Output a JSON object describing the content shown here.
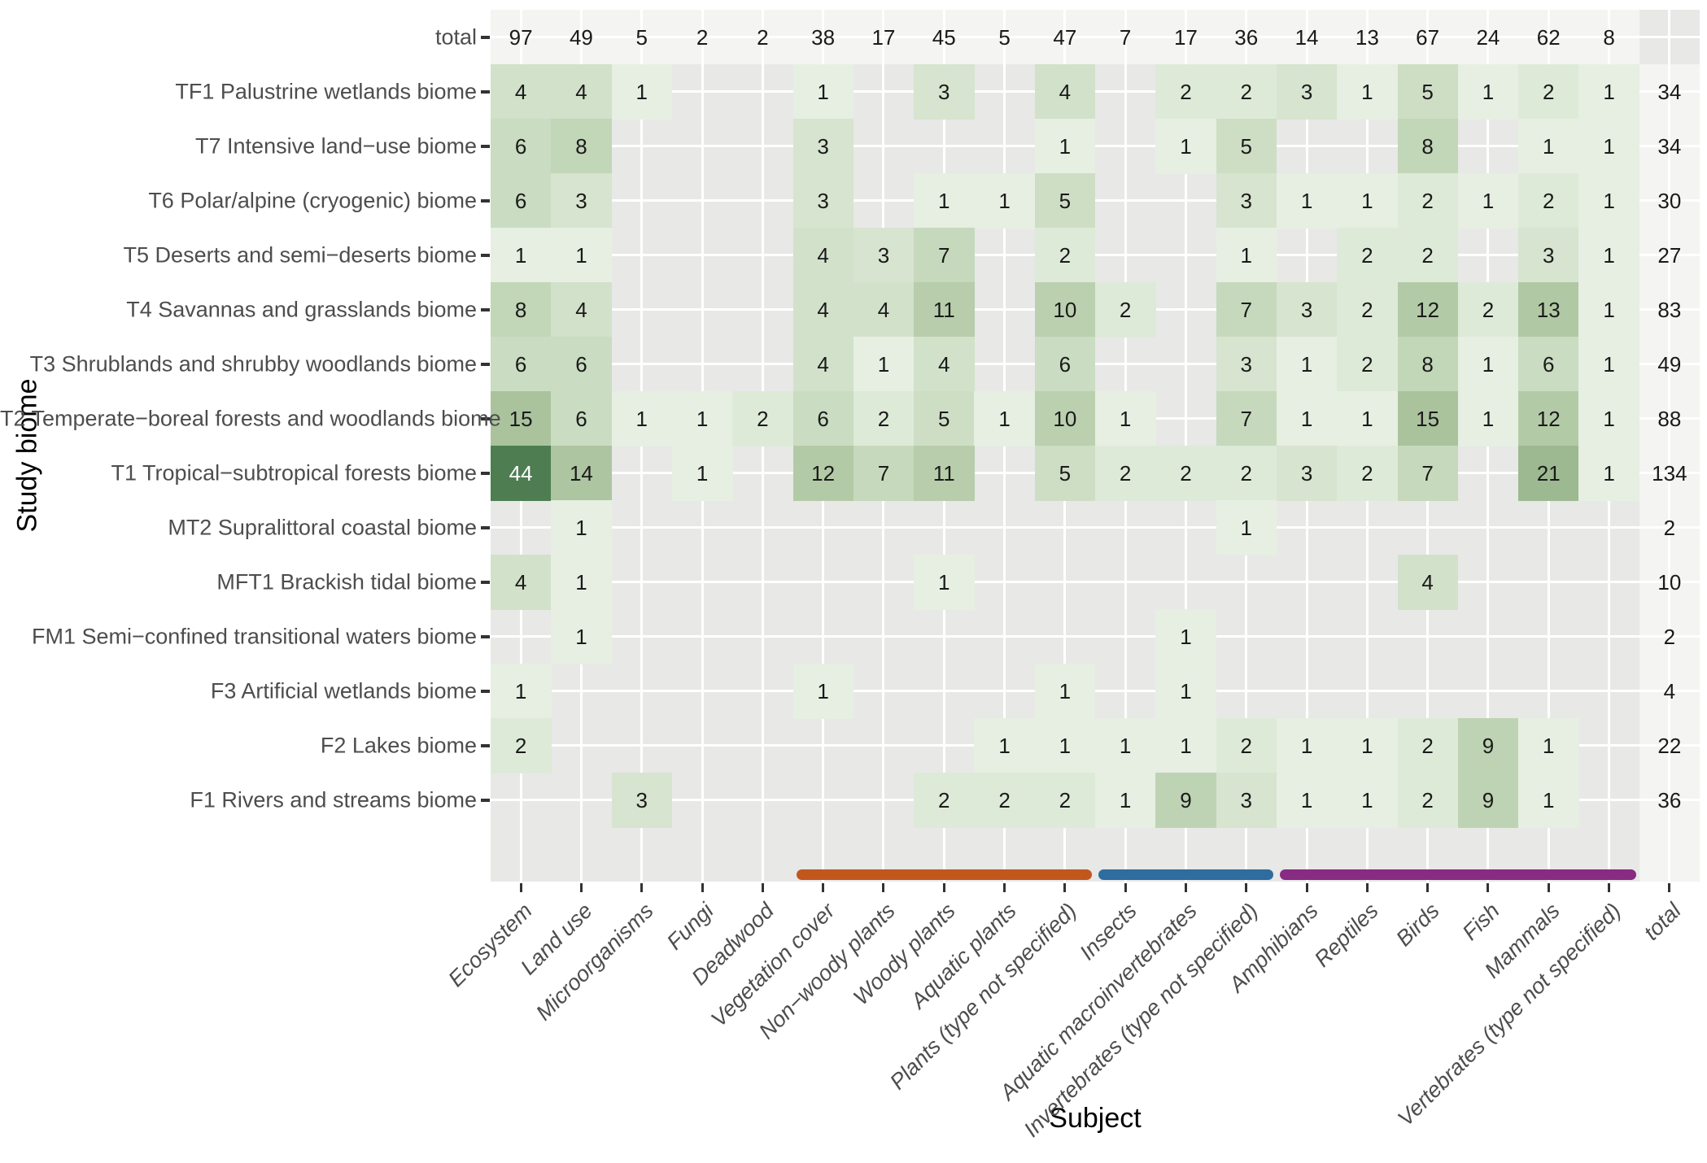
{
  "chart_data": {
    "type": "heatmap",
    "xlabel": "Subject",
    "ylabel": "Study biome",
    "total_label": "total",
    "subjects": [
      "Ecosystem",
      "Land use",
      "Microorganisms",
      "Fungi",
      "Deadwood",
      "Vegetation cover",
      "Non−woody plants",
      "Woody plants",
      "Aquatic plants",
      "Plants (type not specified)",
      "Insects",
      "Aquatic macroinvertebrates",
      "Invertebrates (type not specified)",
      "Amphibians",
      "Reptiles",
      "Birds",
      "Fish",
      "Mammals",
      "Vertebrates (type not specified)"
    ],
    "subject_totals": [
      97,
      49,
      5,
      2,
      2,
      38,
      17,
      45,
      5,
      47,
      7,
      17,
      36,
      14,
      13,
      67,
      24,
      62,
      8
    ],
    "biomes": [
      {
        "label": "TF1 Palustrine wetlands biome",
        "values": [
          4,
          4,
          1,
          0,
          0,
          1,
          0,
          3,
          0,
          4,
          0,
          2,
          2,
          3,
          1,
          5,
          1,
          2,
          1
        ],
        "total": 34
      },
      {
        "label": "T7 Intensive land−use biome",
        "values": [
          6,
          8,
          0,
          0,
          0,
          3,
          0,
          0,
          0,
          1,
          0,
          1,
          5,
          0,
          0,
          8,
          0,
          1,
          1
        ],
        "total": 34
      },
      {
        "label": "T6 Polar/alpine (cryogenic) biome",
        "values": [
          6,
          3,
          0,
          0,
          0,
          3,
          0,
          1,
          1,
          5,
          0,
          0,
          3,
          1,
          1,
          2,
          1,
          2,
          1
        ],
        "total": 30
      },
      {
        "label": "T5 Deserts and semi−deserts biome",
        "values": [
          1,
          1,
          0,
          0,
          0,
          4,
          3,
          7,
          0,
          2,
          0,
          0,
          1,
          0,
          2,
          2,
          0,
          3,
          1
        ],
        "total": 27
      },
      {
        "label": "T4 Savannas and grasslands biome",
        "values": [
          8,
          4,
          0,
          0,
          0,
          4,
          4,
          11,
          0,
          10,
          2,
          0,
          7,
          3,
          2,
          12,
          2,
          13,
          1
        ],
        "total": 83
      },
      {
        "label": "T3 Shrublands and shrubby woodlands biome",
        "values": [
          6,
          6,
          0,
          0,
          0,
          4,
          1,
          4,
          0,
          6,
          0,
          0,
          3,
          1,
          2,
          8,
          1,
          6,
          1
        ],
        "total": 49
      },
      {
        "label": "T2 Temperate−boreal forests and woodlands biome",
        "values": [
          15,
          6,
          1,
          1,
          2,
          6,
          2,
          5,
          1,
          10,
          1,
          0,
          7,
          1,
          1,
          15,
          1,
          12,
          1
        ],
        "total": 88
      },
      {
        "label": "T1 Tropical−subtropical forests biome",
        "values": [
          44,
          14,
          0,
          1,
          0,
          12,
          7,
          11,
          0,
          5,
          2,
          2,
          2,
          3,
          2,
          7,
          0,
          21,
          1
        ],
        "total": 134
      },
      {
        "label": "MT2 Supralittoral coastal biome",
        "values": [
          0,
          1,
          0,
          0,
          0,
          0,
          0,
          0,
          0,
          0,
          0,
          0,
          1,
          0,
          0,
          0,
          0,
          0,
          0
        ],
        "total": 2
      },
      {
        "label": "MFT1 Brackish tidal biome",
        "values": [
          4,
          1,
          0,
          0,
          0,
          0,
          0,
          1,
          0,
          0,
          0,
          0,
          0,
          0,
          0,
          4,
          0,
          0,
          0
        ],
        "total": 10
      },
      {
        "label": "FM1 Semi−confined transitional waters biome",
        "values": [
          0,
          1,
          0,
          0,
          0,
          0,
          0,
          0,
          0,
          0,
          0,
          1,
          0,
          0,
          0,
          0,
          0,
          0,
          0
        ],
        "total": 2
      },
      {
        "label": "F3 Artificial wetlands biome",
        "values": [
          1,
          0,
          0,
          0,
          0,
          1,
          0,
          0,
          0,
          1,
          0,
          1,
          0,
          0,
          0,
          0,
          0,
          0,
          0
        ],
        "total": 4
      },
      {
        "label": "F2 Lakes biome",
        "values": [
          2,
          0,
          0,
          0,
          0,
          0,
          0,
          0,
          1,
          1,
          1,
          1,
          2,
          1,
          1,
          2,
          9,
          1,
          0
        ],
        "total": 22
      },
      {
        "label": "F1 Rivers and streams biome",
        "values": [
          0,
          0,
          3,
          0,
          0,
          0,
          0,
          2,
          2,
          2,
          1,
          9,
          3,
          1,
          1,
          2,
          9,
          1,
          0
        ],
        "total": 36
      }
    ],
    "groups": [
      {
        "name": "plants-group",
        "color": "#C2571E",
        "start_index": 5,
        "end_index": 9
      },
      {
        "name": "invertebrates-group",
        "color": "#2E6D9E",
        "start_index": 10,
        "end_index": 12
      },
      {
        "name": "vertebrates-group",
        "color": "#872B83",
        "start_index": 13,
        "end_index": 18
      }
    ],
    "colors": {
      "panel_bg": "#E8E8E7",
      "total_band": "#F4F4F2",
      "gridline": "#FFFFFF",
      "tick": "#333333",
      "axis_text": "#4D4D4D",
      "value_text": "#1A1A1A",
      "value_text_light": "#FFFFFF"
    },
    "value_colors": {
      "1": "#E6EFE2",
      "2": "#DEEAD8",
      "3": "#D7E4CF",
      "4": "#D2E1CA",
      "5": "#CEDEC5",
      "6": "#CADCC1",
      "7": "#C6D9BC",
      "8": "#C2D6B8",
      "9": "#BED3B3",
      "10": "#BBD0AF",
      "11": "#B7CDAB",
      "12": "#B3CAA7",
      "13": "#B0C8A4",
      "14": "#ADC5A0",
      "15": "#AAC39D",
      "21": "#9CB992",
      "44": "#4E7D52"
    },
    "light_text_min": 30
  }
}
